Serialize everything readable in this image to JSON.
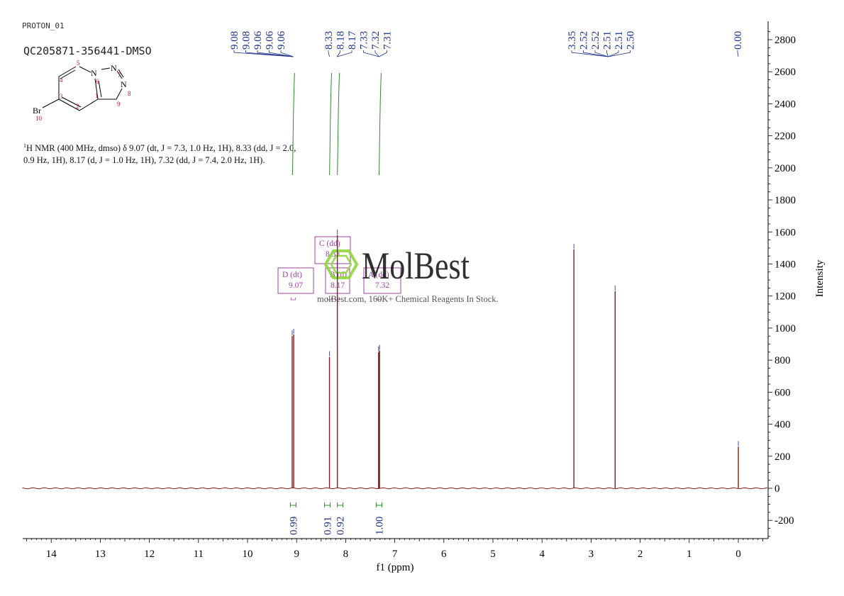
{
  "header": {
    "experiment": "PROTON_01",
    "sample": "QC205871-356441-DMSO"
  },
  "structure": {
    "atoms": [
      {
        "label": "N",
        "num": "6"
      },
      {
        "label": "N",
        "num": "7"
      },
      {
        "label": "N",
        "num": "8"
      },
      {
        "label": "Br",
        "num": "10"
      }
    ],
    "numbers": [
      "1",
      "2",
      "3",
      "4",
      "5",
      "9"
    ]
  },
  "description": {
    "sup": "1",
    "text": "H NMR (400 MHz, dmso) δ 9.07 (dt, J = 7.3, 1.0 Hz, 1H), 8.33 (dd, J = 2.0, 0.9 Hz, 1H), 8.17 (d, J = 1.0 Hz, 1H), 7.32 (dd, J = 7.4, 2.0 Hz, 1H)."
  },
  "watermark": {
    "brand": "MolBest",
    "tagline": "molBest.com, 160K+ Chemical Reagents In Stock."
  },
  "colors": {
    "spectrum": "#8b1a1a",
    "integral": "#2e8b2e",
    "peak_label": "#1a2f8b",
    "multiplet": "#a040a0",
    "watermark": "#8ed63c"
  },
  "chart_data": {
    "type": "line",
    "title": "",
    "xlabel": "f1 (ppm)",
    "ylabel": "Intensity",
    "xlim": [
      14.6,
      -0.6
    ],
    "ylim": [
      -300,
      2860
    ],
    "x_ticks": [
      "14",
      "13",
      "12",
      "11",
      "10",
      "9",
      "8",
      "7",
      "6",
      "5",
      "4",
      "3",
      "2",
      "1",
      "0"
    ],
    "y_ticks": [
      "2800",
      "2600",
      "2400",
      "2200",
      "2000",
      "1800",
      "1600",
      "1400",
      "1200",
      "1000",
      "800",
      "600",
      "400",
      "200",
      "0",
      "-200"
    ],
    "peaks": [
      {
        "ppm": 9.09,
        "height": 950
      },
      {
        "ppm": 9.06,
        "height": 960
      },
      {
        "ppm": 8.33,
        "height": 820
      },
      {
        "ppm": 8.17,
        "height": 1580
      },
      {
        "ppm": 7.33,
        "height": 850
      },
      {
        "ppm": 7.31,
        "height": 860
      },
      {
        "ppm": 3.35,
        "height": 1490
      },
      {
        "ppm": 2.51,
        "height": 1230
      },
      {
        "ppm": 0.0,
        "height": 260
      }
    ],
    "peak_labels": [
      {
        "group": [
          {
            "text": "9.08",
            "ppm": 9.08
          },
          {
            "text": "9.08",
            "ppm": 9.08
          },
          {
            "text": "9.06",
            "ppm": 9.06
          },
          {
            "text": "9.06",
            "ppm": 9.06
          },
          {
            "text": "9.06",
            "ppm": 9.06
          }
        ]
      },
      {
        "group": [
          {
            "text": "8.33",
            "ppm": 8.33
          },
          {
            "text": "8.18",
            "ppm": 8.18
          },
          {
            "text": "8.17",
            "ppm": 8.17
          },
          {
            "text": "7.33",
            "ppm": 7.33
          },
          {
            "text": "7.32",
            "ppm": 7.32
          },
          {
            "text": "7.31",
            "ppm": 7.31
          }
        ]
      },
      {
        "group": [
          {
            "text": "3.35",
            "ppm": 3.35
          },
          {
            "text": "2.52",
            "ppm": 2.52
          },
          {
            "text": "2.52",
            "ppm": 2.52
          },
          {
            "text": "2.51",
            "ppm": 2.51
          },
          {
            "text": "2.51",
            "ppm": 2.51
          },
          {
            "text": "2.50",
            "ppm": 2.5
          }
        ]
      },
      {
        "group": [
          {
            "text": "0.00",
            "ppm": 0.0
          }
        ]
      }
    ],
    "integrals": [
      {
        "ppm": 9.07,
        "value": "0.99"
      },
      {
        "ppm": 8.33,
        "value": "0.91"
      },
      {
        "ppm": 8.17,
        "value": "0.92"
      },
      {
        "ppm": 7.32,
        "value": "1.00"
      }
    ],
    "multiplets": [
      {
        "id": "D",
        "type": "dt",
        "shift": "9.07",
        "ppm": 9.07
      },
      {
        "id": "C",
        "type": "dd",
        "shift": "8.33",
        "ppm": 8.33
      },
      {
        "id": "B",
        "type": "d",
        "shift": "8.17",
        "ppm": 8.17
      },
      {
        "id": "A",
        "type": "dd",
        "shift": "7.32",
        "ppm": 7.32
      }
    ]
  }
}
